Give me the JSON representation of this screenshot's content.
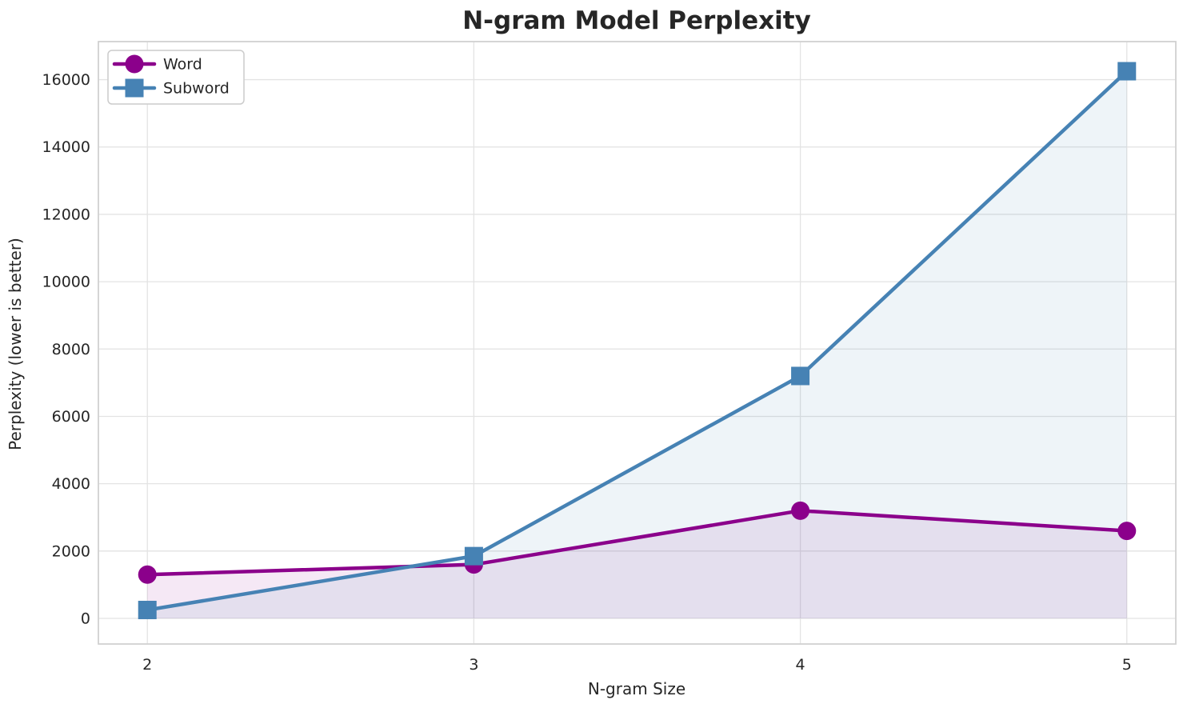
{
  "chart_data": {
    "type": "line",
    "title": "N-gram Model Perplexity",
    "xlabel": "N-gram Size",
    "ylabel": "Perplexity (lower is better)",
    "x": [
      2,
      3,
      4,
      5
    ],
    "series": [
      {
        "name": "Word",
        "marker": "circle",
        "color": "#8B008B",
        "values": [
          1300,
          1600,
          3200,
          2600
        ]
      },
      {
        "name": "Subword",
        "marker": "square",
        "color": "#4682B4",
        "values": [
          250,
          1850,
          7200,
          16250
        ]
      }
    ],
    "fill_to_zero": true,
    "fill_opacity": 0.09,
    "xticks": [
      2,
      3,
      4,
      5
    ],
    "yticks": [
      0,
      2000,
      4000,
      6000,
      8000,
      10000,
      12000,
      14000,
      16000
    ],
    "xlim": [
      1.85,
      5.15
    ],
    "ylim": [
      -760,
      17130
    ],
    "grid": true,
    "legend_position": "upper left",
    "colors": {
      "grid": "#e3e3e3",
      "spine": "#cfcfcf",
      "text": "#262626",
      "background": "#ffffff",
      "legend_border": "#cccccc"
    }
  }
}
